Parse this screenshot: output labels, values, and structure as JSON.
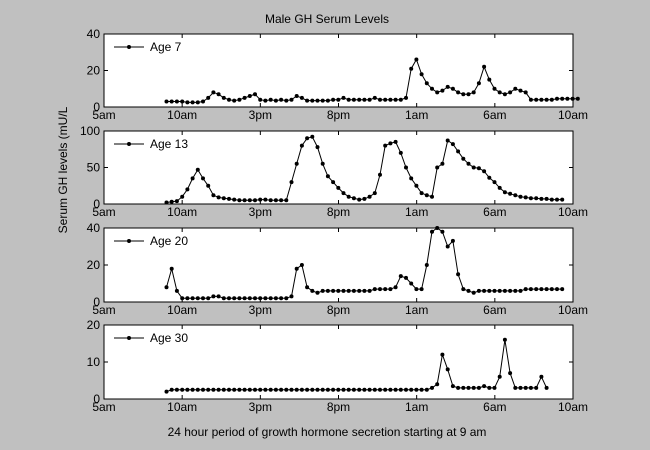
{
  "chart_data": {
    "type": "line",
    "title": "Male GH Serum Levels",
    "xlabel": "24 hour period of growth hormone secretion starting at 9 am",
    "ylabel": "Serum GH levels (mU/L",
    "x_tick_labels": [
      "5am",
      "10am",
      "3pm",
      "8pm",
      "1am",
      "6am",
      "10am"
    ],
    "x_tick_hours": [
      5,
      10,
      15,
      20,
      25,
      30,
      35
    ],
    "xlim": [
      5,
      35
    ],
    "sample_interval_hours": 0.333,
    "grid": false,
    "legend_position": "top-left",
    "series_color": "#000000",
    "panels": [
      {
        "name": "Age 7",
        "ylim": [
          0,
          40
        ],
        "yticks": [
          0,
          20,
          40
        ],
        "start_hour": 9,
        "values": [
          3,
          3,
          3,
          3,
          2.5,
          2.5,
          2.5,
          3,
          5,
          8,
          7,
          5,
          4,
          3.5,
          4,
          5,
          6,
          7,
          4,
          3.5,
          4,
          3.5,
          4,
          3.5,
          4,
          6,
          5,
          3.5,
          3.5,
          3.5,
          3.5,
          3.5,
          4,
          4,
          5,
          4,
          4,
          4,
          4,
          4,
          5,
          4,
          4,
          4,
          4,
          4,
          5,
          21,
          26,
          18,
          13,
          10,
          8,
          9,
          11,
          10,
          8,
          7,
          7,
          8,
          13,
          22,
          15,
          10,
          8,
          7,
          8,
          10,
          9,
          8,
          4,
          4,
          4,
          4,
          4,
          4.5,
          4.5,
          4.5,
          4.5,
          4.5
        ]
      },
      {
        "name": "Age 13",
        "ylim": [
          0,
          100
        ],
        "yticks": [
          0,
          50,
          100
        ],
        "start_hour": 9,
        "values": [
          2,
          3,
          4,
          10,
          20,
          35,
          47,
          35,
          25,
          12,
          9,
          8,
          7,
          6,
          5,
          5,
          5,
          5,
          6,
          6,
          5,
          5,
          5,
          5,
          30,
          55,
          80,
          90,
          92,
          78,
          55,
          38,
          30,
          22,
          15,
          10,
          8,
          6,
          7,
          10,
          15,
          40,
          80,
          83,
          85,
          70,
          50,
          35,
          25,
          15,
          12,
          10,
          50,
          55,
          87,
          82,
          72,
          62,
          55,
          50,
          49,
          45,
          36,
          30,
          22,
          16,
          14,
          12,
          10,
          9,
          8,
          8,
          7,
          7,
          6,
          6,
          6
        ]
      },
      {
        "name": "Age 20",
        "ylim": [
          0,
          40
        ],
        "yticks": [
          0,
          20,
          40
        ],
        "start_hour": 9,
        "values": [
          8,
          18,
          6,
          2,
          2,
          2,
          2,
          2,
          2,
          3,
          3,
          2,
          2,
          2,
          2,
          2,
          2,
          2,
          2,
          2,
          2,
          2,
          2,
          2,
          3,
          18,
          20,
          8,
          6,
          5,
          6,
          6,
          6,
          6,
          6,
          6,
          6,
          6,
          6,
          6,
          7,
          7,
          7,
          7,
          8,
          14,
          13,
          10,
          7,
          7,
          20,
          38,
          40,
          38,
          30,
          33,
          15,
          7,
          6,
          5,
          6,
          6,
          6,
          6,
          6,
          6,
          6,
          6,
          6,
          7,
          7,
          7,
          7,
          7,
          7,
          7,
          7
        ]
      },
      {
        "name": "Age 30",
        "ylim": [
          0,
          20
        ],
        "yticks": [
          0,
          10,
          20
        ],
        "start_hour": 9,
        "values": [
          2,
          2.5,
          2.5,
          2.5,
          2.5,
          2.5,
          2.5,
          2.5,
          2.5,
          2.5,
          2.5,
          2.5,
          2.5,
          2.5,
          2.5,
          2.5,
          2.5,
          2.5,
          2.5,
          2.5,
          2.5,
          2.5,
          2.5,
          2.5,
          2.5,
          2.5,
          2.5,
          2.5,
          2.5,
          2.5,
          2.5,
          2.5,
          2.5,
          2.5,
          2.5,
          2.5,
          2.5,
          2.5,
          2.5,
          2.5,
          2.5,
          2.5,
          2.5,
          2.5,
          2.5,
          2.5,
          2.5,
          2.5,
          2.5,
          2.5,
          2.5,
          3,
          4,
          12,
          8,
          3.5,
          3,
          3,
          3,
          3,
          3,
          3.5,
          3,
          3,
          6,
          16,
          7,
          3,
          3,
          3,
          3,
          3,
          6,
          3
        ]
      }
    ]
  }
}
